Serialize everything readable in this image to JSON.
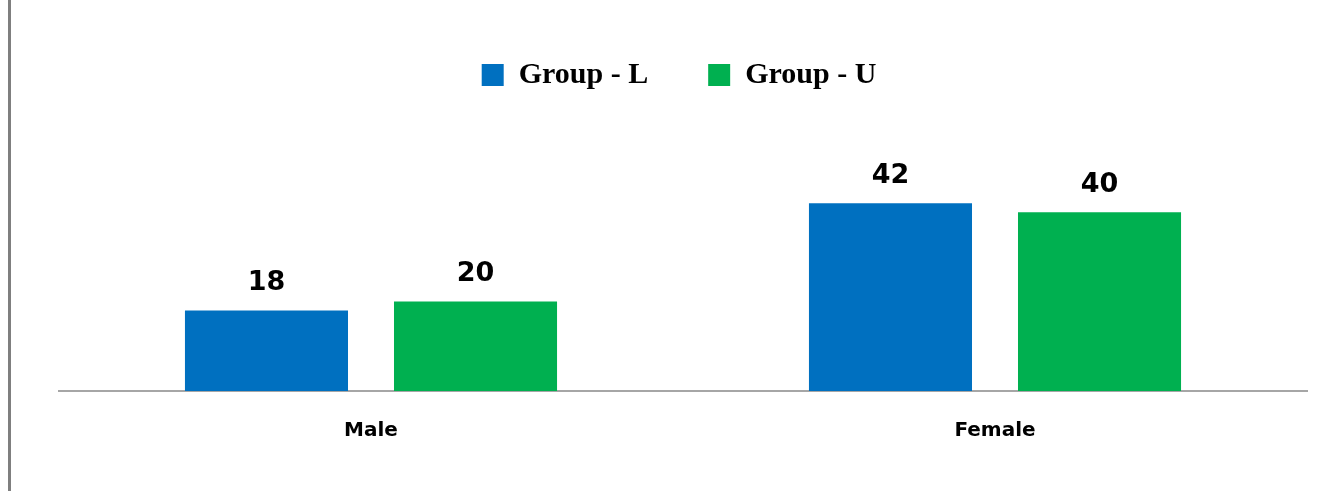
{
  "chart_data": {
    "type": "bar",
    "categories": [
      "Male",
      "Female"
    ],
    "series": [
      {
        "name": "Group - L",
        "color": "#0070c0",
        "values": [
          18,
          42
        ]
      },
      {
        "name": "Group - U",
        "color": "#00b050",
        "values": [
          20,
          40
        ]
      }
    ],
    "relative": false,
    "data_labels": true,
    "legend": "top",
    "grid": false
  }
}
